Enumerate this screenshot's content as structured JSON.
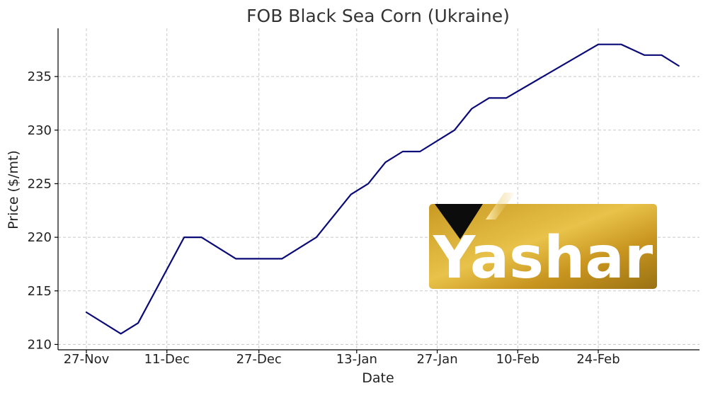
{
  "chart_data": {
    "type": "line",
    "title": "FOB Black Sea Corn (Ukraine)",
    "xlabel": "Date",
    "ylabel": "Price ($/mt)",
    "x_ticks": [
      "27-Nov",
      "11-Dec",
      "27-Dec",
      "13-Jan",
      "27-Jan",
      "10-Feb",
      "24-Feb"
    ],
    "y_ticks": [
      210,
      215,
      220,
      225,
      230,
      235
    ],
    "grid": true,
    "legend": "none",
    "series": [
      {
        "color": "#0a0a78",
        "points": [
          {
            "x": "27-Nov",
            "y": 213
          },
          {
            "x": "03-Dec",
            "y": 211
          },
          {
            "x": "06-Dec",
            "y": 212
          },
          {
            "x": "10-Dec",
            "y": 216
          },
          {
            "x": "14-Dec",
            "y": 220
          },
          {
            "x": "17-Dec",
            "y": 220
          },
          {
            "x": "23-Dec",
            "y": 218
          },
          {
            "x": "27-Dec",
            "y": 218
          },
          {
            "x": "31-Dec",
            "y": 218
          },
          {
            "x": "06-Jan",
            "y": 220
          },
          {
            "x": "12-Jan",
            "y": 224
          },
          {
            "x": "15-Jan",
            "y": 225
          },
          {
            "x": "18-Jan",
            "y": 227
          },
          {
            "x": "21-Jan",
            "y": 228
          },
          {
            "x": "24-Jan",
            "y": 228
          },
          {
            "x": "30-Jan",
            "y": 230
          },
          {
            "x": "02-Feb",
            "y": 232
          },
          {
            "x": "05-Feb",
            "y": 233
          },
          {
            "x": "08-Feb",
            "y": 233
          },
          {
            "x": "24-Feb",
            "y": 238
          },
          {
            "x": "28-Feb",
            "y": 238
          },
          {
            "x": "03-Mar",
            "y": 237
          },
          {
            "x": "06-Mar",
            "y": 237
          },
          {
            "x": "09-Mar",
            "y": 236
          }
        ]
      }
    ]
  },
  "watermark": {
    "logo_text": "Yashar",
    "colors": {
      "gold_dark": "#b08518",
      "gold_light": "#f0d45a",
      "triangle": "#0c0c0c"
    }
  }
}
